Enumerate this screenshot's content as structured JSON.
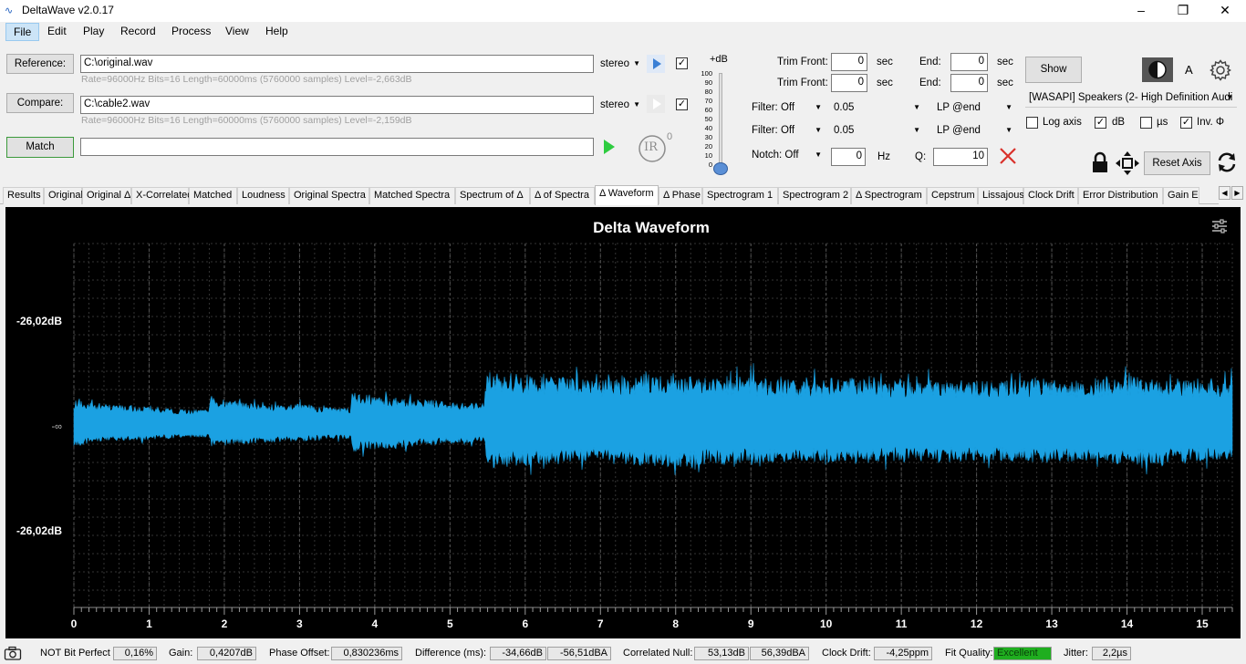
{
  "app": {
    "title": "DeltaWave v2.0.17"
  },
  "menu": [
    "File",
    "Edit",
    "Play",
    "Record",
    "Process",
    "View",
    "Help"
  ],
  "reference": {
    "button": "Reference:",
    "path": "C:\\original.wav",
    "channel": "stereo",
    "info": "Rate=96000Hz Bits=16 Length=60000ms (5760000 samples) Level=-2,663dB",
    "checked": true
  },
  "compare": {
    "button": "Compare:",
    "path": "C:\\cable2.wav",
    "channel": "stereo",
    "info": "Rate=96000Hz Bits=16 Length=60000ms (5760000 samples) Level=-2,159dB",
    "checked": true
  },
  "match": {
    "button": "Match",
    "value": ""
  },
  "ir": {
    "label": "IR",
    "superscript": "0"
  },
  "level_slider": {
    "label": "+dB",
    "ticks": [
      "100",
      "90",
      "80",
      "70",
      "60",
      "50",
      "40",
      "30",
      "20",
      "10",
      "0"
    ],
    "value_db": 0
  },
  "trim": {
    "front_label": "Trim Front:",
    "end_label": "End:",
    "unit": "sec",
    "rows": [
      {
        "front": "0",
        "end": "0"
      },
      {
        "front": "0",
        "end": "0"
      }
    ]
  },
  "filters": [
    {
      "type": "Filter: Off",
      "value": "0.05",
      "mode": "LP @end"
    },
    {
      "type": "Filter: Off",
      "value": "0.05",
      "mode": "LP @end"
    }
  ],
  "notch": {
    "type": "Notch: Off",
    "value": "0",
    "unit": "Hz",
    "q_label": "Q:",
    "q_value": "10"
  },
  "output": {
    "show_button": "Show",
    "font_label": "A",
    "device": "[WASAPI] Speakers (2- High Definition Audi",
    "options": [
      {
        "label": "Log axis",
        "checked": false
      },
      {
        "label": "dB",
        "checked": true
      },
      {
        "label": "µs",
        "checked": false
      },
      {
        "label": "Inv. Φ",
        "checked": true
      }
    ],
    "reset_axis": "Reset Axis"
  },
  "tabs": [
    "Results",
    "Original",
    "Original Δ",
    "X-Correlated",
    "Matched",
    "Loudness",
    "Original Spectra",
    "Matched Spectra",
    "Spectrum of Δ",
    "Δ of Spectra",
    "Δ Waveform",
    "Δ Phase",
    "Spectrogram 1",
    "Spectrogram 2",
    "Δ Spectrogram",
    "Cepstrum",
    "Lissajous",
    "Clock Drift",
    "Error Distribution",
    "Gain E"
  ],
  "active_tab": "Δ Waveform",
  "chart_data": {
    "type": "area",
    "title": "Delta Waveform",
    "x_ticks": [
      "0",
      "1",
      "2",
      "3",
      "4",
      "5",
      "6",
      "7",
      "8",
      "9",
      "10",
      "11",
      "12",
      "13",
      "14",
      "15"
    ],
    "y_ticks": [
      "-26,02dB",
      "-∞",
      "-26,02dB"
    ],
    "xlim": [
      0,
      15.4
    ],
    "grid": true,
    "color": "#1ba1e2",
    "envelope": {
      "x": [
        0.0,
        0.5,
        1.0,
        1.5,
        1.8,
        1.82,
        2.5,
        3.0,
        3.5,
        3.68,
        3.7,
        4.2,
        4.7,
        5.2,
        5.45,
        5.5,
        6.0,
        6.5,
        7.0,
        7.5,
        8.0,
        8.5,
        9.0,
        9.5,
        10.0,
        10.5,
        11.0,
        11.5,
        12.0,
        12.5,
        13.0,
        13.5,
        14.0,
        14.5,
        15.0,
        15.4
      ],
      "amplitude": [
        0.13,
        0.1,
        0.09,
        0.07,
        0.07,
        0.14,
        0.11,
        0.1,
        0.08,
        0.08,
        0.18,
        0.15,
        0.13,
        0.11,
        0.11,
        0.3,
        0.28,
        0.27,
        0.25,
        0.28,
        0.29,
        0.27,
        0.27,
        0.25,
        0.26,
        0.26,
        0.24,
        0.26,
        0.24,
        0.25,
        0.26,
        0.24,
        0.28,
        0.26,
        0.25,
        0.24
      ]
    }
  },
  "status": {
    "bit_perfect": "NOT Bit Perfect",
    "bit_perfect_value": "0,16%",
    "gain_label": "Gain:",
    "gain_value": "0,4207dB",
    "phase_label": "Phase Offset:",
    "phase_value": "0,830236ms",
    "diff_label": "Difference (ms):",
    "diff_value1": "-34,66dB",
    "diff_value2": "-56,51dBA",
    "null_label": "Correlated Null:",
    "null_value1": "53,13dB",
    "null_value2": "56,39dBA",
    "drift_label": "Clock Drift:",
    "drift_value": "-4,25ppm",
    "fit_label": "Fit Quality:",
    "fit_value": "Excellent",
    "jitter_label": "Jitter:",
    "jitter_value": "2,2µs"
  }
}
